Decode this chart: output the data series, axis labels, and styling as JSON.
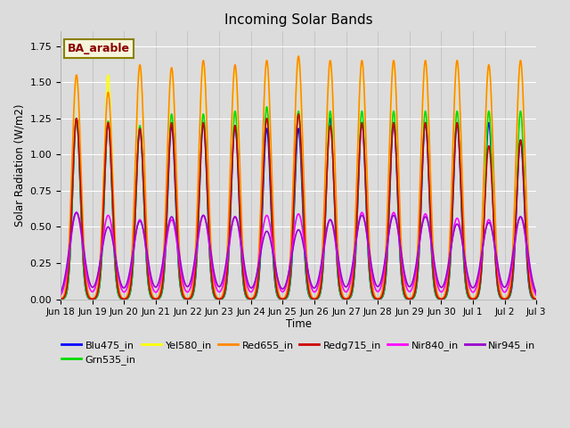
{
  "title": "Incoming Solar Bands",
  "ylabel": "Solar Radiation (W/m2)",
  "xlabel": "Time",
  "ylim": [
    0.0,
    1.85
  ],
  "annotation_text": "BA_arable",
  "annotation_fgcolor": "#8B0000",
  "annotation_bgcolor": "#f5f5dc",
  "series": [
    {
      "label": "Blu475_in",
      "color": "#0000ff",
      "lw": 1.2
    },
    {
      "label": "Grn535_in",
      "color": "#00dd00",
      "lw": 1.2
    },
    {
      "label": "Yel580_in",
      "color": "#ffff00",
      "lw": 1.2
    },
    {
      "label": "Red655_in",
      "color": "#ff8800",
      "lw": 1.2
    },
    {
      "label": "Redg715_in",
      "color": "#cc0000",
      "lw": 1.2
    },
    {
      "label": "Nir840_in",
      "color": "#ff00ff",
      "lw": 1.2
    },
    {
      "label": "Nir945_in",
      "color": "#9900cc",
      "lw": 1.2
    }
  ],
  "tick_labels": [
    "Jun 18",
    "Jun 19",
    "Jun 20",
    "Jun 21",
    "Jun 22",
    "Jun 23",
    "Jun 24",
    "Jun 25",
    "Jun 26",
    "Jun 27",
    "Jun 28",
    "Jun 29",
    "Jun 30",
    "Jul 1",
    "Jul 2",
    "Jul 3"
  ],
  "num_days": 15,
  "day_points": 288,
  "widths": {
    "Blu475_in": 0.12,
    "Grn535_in": 0.12,
    "Yel580_in": 0.13,
    "Red655_in": 0.14,
    "Redg715_in": 0.13,
    "Nir840_in": 0.2,
    "Nir945_in": 0.22
  },
  "peaks": {
    "Blu475_in": [
      1.25,
      1.22,
      1.18,
      1.2,
      1.22,
      1.2,
      1.18,
      1.18,
      1.25,
      1.22,
      1.22,
      1.22,
      1.22,
      1.22,
      1.1
    ],
    "Grn535_in": [
      1.25,
      1.23,
      1.2,
      1.28,
      1.28,
      1.3,
      1.33,
      1.3,
      1.3,
      1.3,
      1.3,
      1.3,
      1.3,
      1.3,
      1.3
    ],
    "Yel580_in": [
      1.55,
      1.55,
      1.62,
      1.6,
      1.62,
      1.6,
      1.65,
      1.68,
      1.65,
      1.65,
      1.65,
      1.65,
      1.65,
      1.62,
      1.65
    ],
    "Red655_in": [
      1.55,
      1.43,
      1.62,
      1.6,
      1.65,
      1.62,
      1.65,
      1.68,
      1.65,
      1.65,
      1.65,
      1.65,
      1.65,
      1.62,
      1.65
    ],
    "Redg715_in": [
      1.25,
      1.22,
      1.18,
      1.22,
      1.22,
      1.2,
      1.25,
      1.28,
      1.2,
      1.22,
      1.22,
      1.22,
      1.22,
      1.06,
      1.1
    ],
    "Nir840_in": [
      0.6,
      0.58,
      0.55,
      0.55,
      0.58,
      0.57,
      0.58,
      0.59,
      0.55,
      0.6,
      0.6,
      0.59,
      0.56,
      0.55,
      0.57
    ],
    "Nir945_in": [
      0.6,
      0.5,
      0.54,
      0.57,
      0.58,
      0.57,
      0.47,
      0.48,
      0.55,
      0.58,
      0.58,
      0.57,
      0.52,
      0.53,
      0.57
    ]
  },
  "center_offsets": {
    "Blu475_in": [
      0.0,
      0.0,
      0.0,
      0.0,
      0.0,
      0.0,
      0.0,
      0.0,
      0.0,
      0.0,
      0.0,
      0.0,
      0.0,
      0.0,
      0.0
    ],
    "Grn535_in": [
      0.0,
      0.0,
      0.0,
      0.0,
      0.0,
      0.0,
      0.0,
      0.0,
      0.0,
      0.0,
      0.0,
      0.0,
      0.0,
      0.0,
      0.0
    ],
    "Yel580_in": [
      0.0,
      0.0,
      0.0,
      0.0,
      0.0,
      0.0,
      0.0,
      0.0,
      0.0,
      0.0,
      0.0,
      0.0,
      0.0,
      0.0,
      0.0
    ],
    "Red655_in": [
      0.0,
      0.0,
      0.0,
      0.0,
      0.0,
      0.0,
      0.0,
      0.0,
      0.0,
      0.0,
      0.0,
      0.0,
      0.0,
      0.0,
      0.0
    ],
    "Redg715_in": [
      0.0,
      0.0,
      0.0,
      0.0,
      0.0,
      0.0,
      0.0,
      0.0,
      0.0,
      0.0,
      0.0,
      0.0,
      0.0,
      0.0,
      0.0
    ],
    "Nir840_in": [
      0.0,
      0.0,
      0.0,
      0.0,
      0.0,
      0.0,
      0.0,
      0.0,
      0.0,
      0.0,
      0.0,
      0.0,
      0.0,
      0.0,
      0.0
    ],
    "Nir945_in": [
      0.0,
      0.0,
      0.0,
      0.0,
      0.0,
      0.0,
      0.0,
      0.0,
      0.0,
      0.0,
      0.0,
      0.0,
      0.0,
      0.0,
      0.0
    ]
  }
}
